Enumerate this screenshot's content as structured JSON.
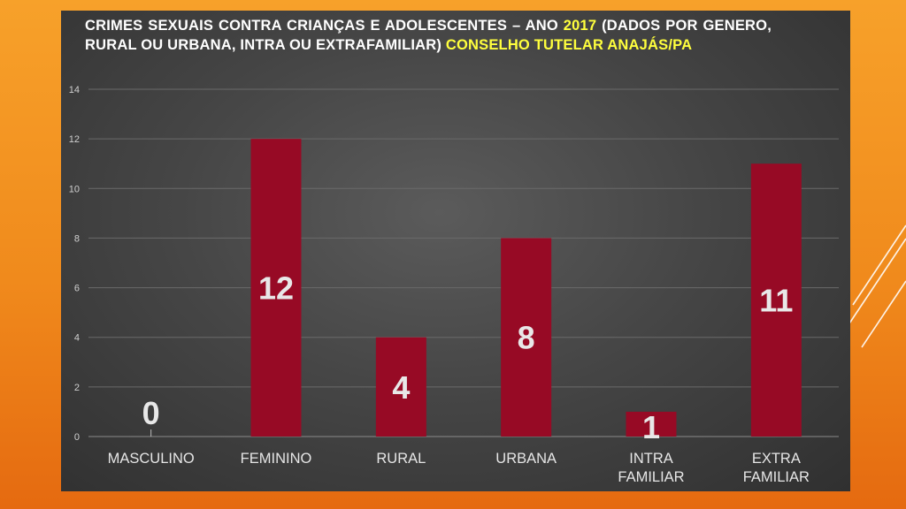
{
  "chart_data": {
    "type": "bar",
    "title_parts": [
      {
        "text": "CRIMES SEXUAIS CONTRA CRIANÇAS E ADOLESCENTES – ANO ",
        "color": "#ffffff"
      },
      {
        "text": "2017",
        "color": "#ffff3d"
      },
      {
        "text": " (DADOS POR GENERO, RURAL OU URBANA, INTRA OU EXTRAFAMILIAR) ",
        "color": "#ffffff"
      },
      {
        "text": "CONSELHO TUTELAR ANAJÁS/PA",
        "color": "#ffff3d"
      }
    ],
    "categories": [
      [
        "MASCULINO"
      ],
      [
        "FEMININO"
      ],
      [
        "RURAL"
      ],
      [
        "URBANA"
      ],
      [
        "INTRA",
        "FAMILIAR"
      ],
      [
        "EXTRA",
        "FAMILIAR"
      ]
    ],
    "values": [
      0,
      12,
      4,
      8,
      1,
      11
    ],
    "data_labels": [
      "0",
      "12",
      "4",
      "8",
      "1",
      "11"
    ],
    "ylim": [
      0,
      14
    ],
    "yticks": [
      0,
      2,
      4,
      6,
      8,
      10,
      12,
      14
    ],
    "grid": true,
    "legend": "none",
    "colors": {
      "bar": "#970a25",
      "gridline": "#6a6a6a",
      "tick_text": "#d0d0d0",
      "category_text": "#e6e6e6",
      "data_label": "#e8e8e8"
    }
  }
}
